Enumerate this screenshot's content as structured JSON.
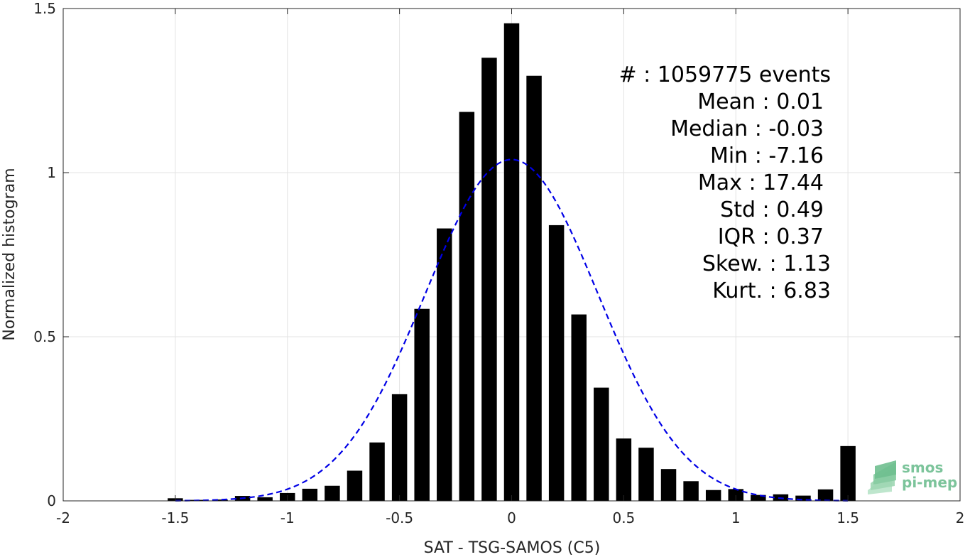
{
  "colors": {
    "bars": "#000000",
    "fit_curve": "#0000e6",
    "grid": "#e3e3e3",
    "axes": "#262626",
    "logo": "#7cc49b"
  },
  "chart_data": {
    "type": "bar",
    "title": "",
    "xlabel": "SAT - TSG-SAMOS (C5)",
    "ylabel": "Normalized histogram",
    "xlim": [
      -2,
      2
    ],
    "ylim": [
      0,
      1.5
    ],
    "grid": true,
    "x_ticks": [
      "-2",
      "-1.5",
      "-1",
      "-0.5",
      "0",
      "0.5",
      "1",
      "1.5",
      "2"
    ],
    "y_ticks": [
      "0",
      "0.5",
      "1",
      "1.5"
    ],
    "bin_width": 0.1,
    "x": [
      -1.5,
      -1.4,
      -1.3,
      -1.2,
      -1.1,
      -1.0,
      -0.9,
      -0.8,
      -0.7,
      -0.6,
      -0.5,
      -0.4,
      -0.3,
      -0.2,
      -0.1,
      0.0,
      0.1,
      0.2,
      0.3,
      0.4,
      0.5,
      0.6,
      0.7,
      0.8,
      0.9,
      1.0,
      1.1,
      1.2,
      1.3,
      1.4,
      1.5
    ],
    "values": [
      0.008,
      0.003,
      0.004,
      0.015,
      0.011,
      0.024,
      0.037,
      0.046,
      0.092,
      0.178,
      0.325,
      0.585,
      0.83,
      1.185,
      1.35,
      1.455,
      1.295,
      0.84,
      0.568,
      0.345,
      0.19,
      0.162,
      0.097,
      0.06,
      0.033,
      0.036,
      0.018,
      0.02,
      0.016,
      0.035,
      0.167
    ],
    "fit": {
      "type": "gaussian",
      "line_style": "dashed",
      "mean": 0.0,
      "std": 0.385,
      "peak": 1.04
    },
    "stats": [
      "#  : 1059775 events",
      "Mean : 0.01",
      "Median : -0.03",
      "Min : -7.16",
      "Max : 17.44",
      "Std : 0.49",
      "IQR : 0.37",
      "Skew. : 1.13",
      "Kurt. : 6.83"
    ]
  },
  "logo": {
    "line1": "smos",
    "line2": "pi-mep"
  }
}
